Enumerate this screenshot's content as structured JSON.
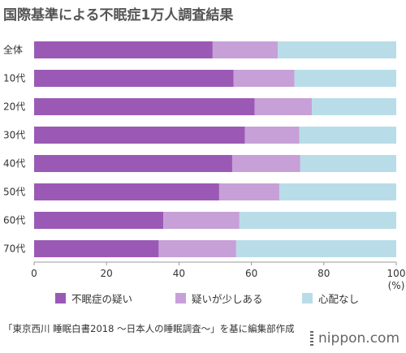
{
  "title": "国際基準による不眠症1万人調査結果",
  "chart_data": {
    "type": "bar",
    "orientation": "horizontal",
    "stacked": true,
    "categories": [
      "全体",
      "10代",
      "20代",
      "30代",
      "40代",
      "50代",
      "60代",
      "70代"
    ],
    "series": [
      {
        "name": "不眠症の疑い",
        "color": "#9b59b6",
        "values": [
          49.3,
          55.1,
          60.9,
          58.2,
          54.7,
          51.1,
          35.7,
          34.4
        ]
      },
      {
        "name": "疑いが少しある",
        "color": "#c7a0d8",
        "values": [
          18.0,
          16.8,
          15.8,
          15.0,
          18.8,
          16.6,
          21.0,
          21.4
        ]
      },
      {
        "name": "心配なし",
        "color": "#b8dde8",
        "values": [
          32.7,
          28.1,
          23.3,
          26.8,
          26.5,
          32.3,
          43.3,
          44.2
        ]
      }
    ],
    "xlim": [
      0,
      100
    ],
    "xticks": [
      0,
      20,
      40,
      60,
      80,
      100
    ],
    "xunit": "(%)",
    "legend_position": "bottom"
  },
  "source": "「東京西川 睡眠白書2018 〜日本人の睡眠調査〜」を基に編集部作成",
  "logo": "nippon.com"
}
